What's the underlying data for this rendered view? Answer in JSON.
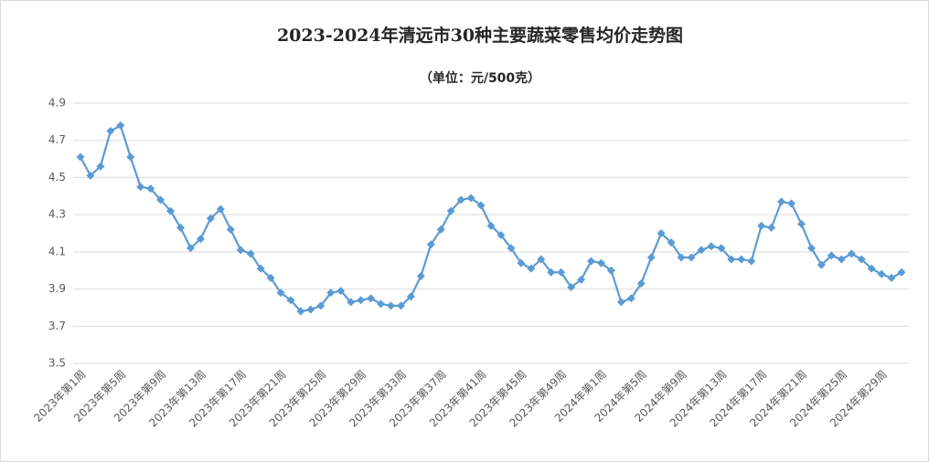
{
  "chart_data": {
    "type": "line",
    "title": "2023-2024年清远市30种主要蔬菜零售均价走势图",
    "subtitle": "（单位：元/500克）",
    "categories": [
      "2023年第1周",
      null,
      null,
      null,
      "2023年第5周",
      null,
      null,
      null,
      "2023年第9周",
      null,
      null,
      null,
      "2023年第13周",
      null,
      null,
      null,
      "2023年第17周",
      null,
      null,
      null,
      "2023年第21周",
      null,
      null,
      null,
      "2023年第25周",
      null,
      null,
      null,
      "2023年第29周",
      null,
      null,
      null,
      "2023年第33周",
      null,
      null,
      null,
      "2023年第37周",
      null,
      null,
      null,
      "2023年第41周",
      null,
      null,
      null,
      "2023年第45周",
      null,
      null,
      null,
      "2023年第49周",
      null,
      null,
      null,
      "2024年第1周",
      null,
      null,
      null,
      "2024年第5周",
      null,
      null,
      null,
      "2024年第9周",
      null,
      null,
      null,
      "2024年第13周",
      null,
      null,
      null,
      "2024年第17周",
      null,
      null,
      null,
      "2024年第21周",
      null,
      null,
      null,
      "2024年第25周",
      null,
      null,
      null,
      "2024年第29周",
      null,
      null
    ],
    "values": [
      4.61,
      4.51,
      4.56,
      4.75,
      4.78,
      4.61,
      4.45,
      4.44,
      4.38,
      4.32,
      4.23,
      4.12,
      4.17,
      4.28,
      4.33,
      4.22,
      4.11,
      4.09,
      4.01,
      3.96,
      3.88,
      3.84,
      3.78,
      3.79,
      3.81,
      3.88,
      3.89,
      3.83,
      3.84,
      3.85,
      3.82,
      3.81,
      3.81,
      3.86,
      3.97,
      4.14,
      4.22,
      4.32,
      4.38,
      4.39,
      4.35,
      4.24,
      4.19,
      4.12,
      4.04,
      4.01,
      4.06,
      3.99,
      3.99,
      3.91,
      3.95,
      4.05,
      4.04,
      4.0,
      3.83,
      3.85,
      3.93,
      4.07,
      4.2,
      4.15,
      4.07,
      4.07,
      4.11,
      4.13,
      4.12,
      4.06,
      4.06,
      4.05,
      4.24,
      4.23,
      4.37,
      4.36,
      4.25,
      4.12,
      4.03,
      4.08,
      4.06,
      4.09,
      4.06,
      4.01,
      3.98,
      3.96,
      3.99
    ],
    "color": "#5b9bd5",
    "ylim": [
      3.5,
      4.9
    ],
    "yticks": [
      3.5,
      3.7,
      3.9,
      4.1,
      4.3,
      4.5,
      4.7,
      4.9
    ],
    "grid": true
  }
}
